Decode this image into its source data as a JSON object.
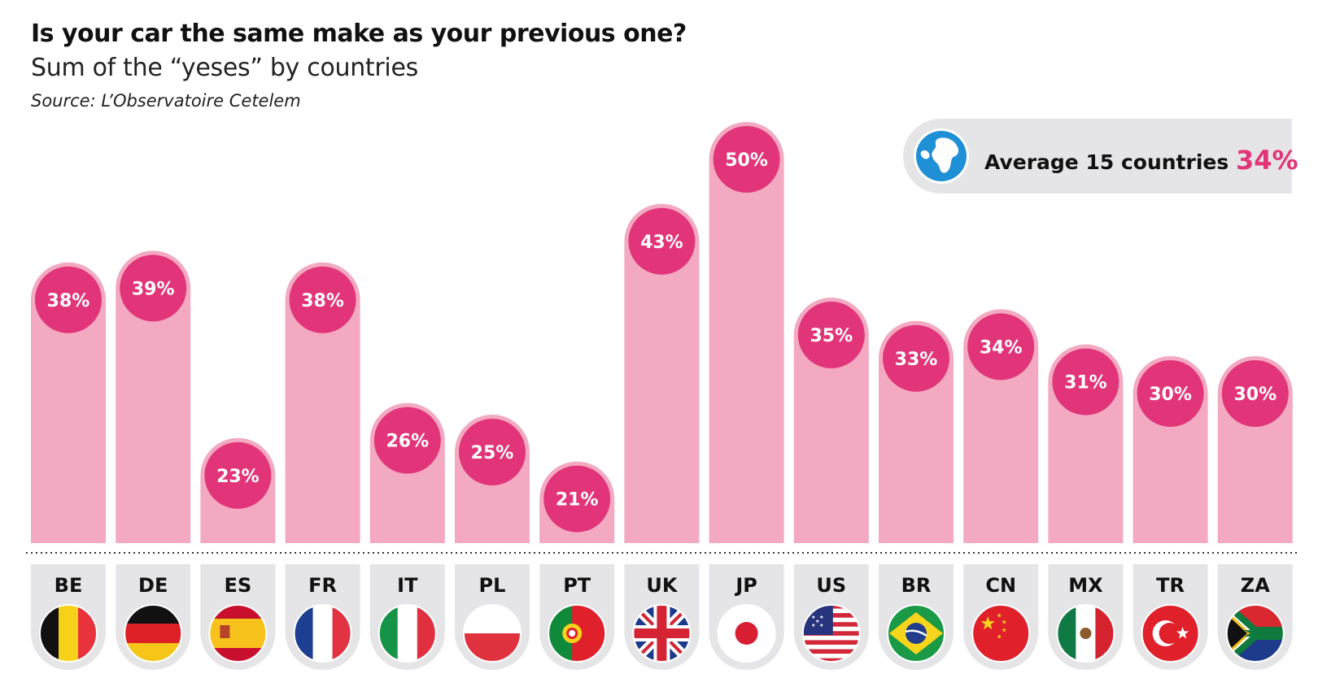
{
  "chart_data": {
    "type": "bar",
    "title": "Is your car the same make as your previous one?",
    "subtitle": "Sum of the “yeses” by countries",
    "source": "Source: L’Observatoire Cetelem",
    "categories": [
      "BE",
      "DE",
      "ES",
      "FR",
      "IT",
      "PL",
      "PT",
      "UK",
      "JP",
      "US",
      "BR",
      "CN",
      "MX",
      "TR",
      "ZA"
    ],
    "values": [
      38,
      39,
      23,
      38,
      26,
      25,
      21,
      43,
      50,
      35,
      33,
      34,
      31,
      30,
      30
    ],
    "value_labels": [
      "38%",
      "39%",
      "23%",
      "38%",
      "26%",
      "25%",
      "21%",
      "43%",
      "50%",
      "35%",
      "33%",
      "34%",
      "31%",
      "30%",
      "30%"
    ],
    "unit": "%",
    "average": {
      "label": "Average 15 countries",
      "value": 34,
      "value_label": "34%"
    },
    "legend": "none",
    "grid": false,
    "colors": {
      "bar": "#f2a9c1",
      "bubble": "#e23579",
      "tab": "#e5e5e7",
      "accent": "#e23579"
    },
    "flag_icons": [
      "belgium-flag-icon",
      "germany-flag-icon",
      "spain-flag-icon",
      "france-flag-icon",
      "italy-flag-icon",
      "poland-flag-icon",
      "portugal-flag-icon",
      "uk-flag-icon",
      "japan-flag-icon",
      "usa-flag-icon",
      "brazil-flag-icon",
      "china-flag-icon",
      "mexico-flag-icon",
      "turkey-flag-icon",
      "south-africa-flag-icon"
    ]
  }
}
